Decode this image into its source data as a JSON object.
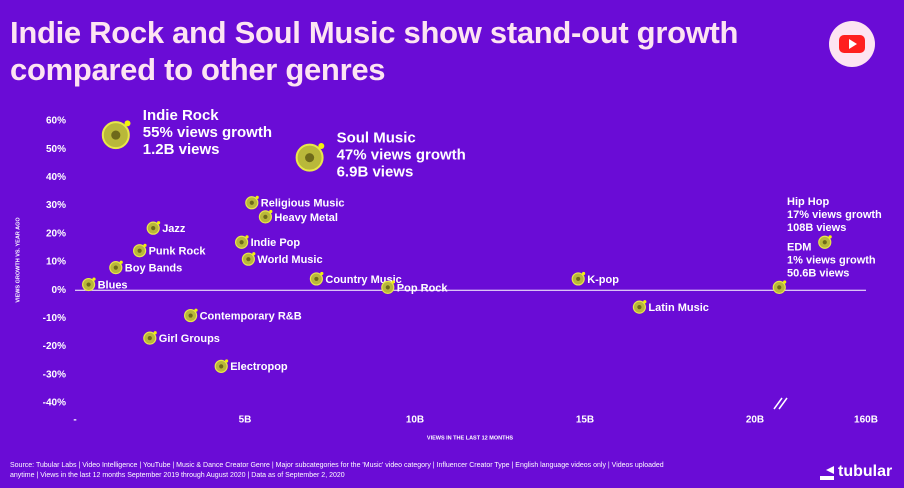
{
  "chart_data": {
    "type": "scatter",
    "title": "Indie Rock and Soul Music show stand-out growth compared to other genres",
    "xlabel": "VIEWS IN THE LAST 12 MONTHS",
    "ylabel": "VIEWS GROWTH VS. YEAR AGO",
    "labels": [
      "Indie Rock",
      "Soul Music",
      "Religious Music",
      "Heavy Metal",
      "Jazz",
      "Indie Pop",
      "Punk Rock",
      "World Music",
      "Boy Bands",
      "Country Music",
      "Blues",
      "Pop Rock",
      "K-pop",
      "Latin Music",
      "Contemporary R&B",
      "Girl Groups",
      "Electropop",
      "Hip Hop",
      "EDM"
    ],
    "x": [
      1.2,
      6.9,
      5.2,
      5.6,
      2.3,
      4.9,
      1.9,
      5.1,
      1.2,
      7.1,
      0.4,
      9.2,
      14.8,
      16.6,
      3.4,
      2.2,
      4.3,
      108,
      50.6
    ],
    "values": [
      55,
      47,
      31,
      26,
      22,
      17,
      14,
      11,
      8,
      4,
      2,
      1,
      4,
      -6,
      -9,
      -17,
      -27,
      17,
      1
    ],
    "value_labels": [
      "55% views growth",
      "47% views growth",
      null,
      null,
      null,
      null,
      null,
      null,
      null,
      null,
      null,
      null,
      null,
      null,
      null,
      null,
      null,
      "17% views growth",
      "1% views growth"
    ],
    "x_value_labels": [
      "1.2B views",
      "6.9B views",
      null,
      null,
      null,
      null,
      null,
      null,
      null,
      null,
      null,
      null,
      null,
      null,
      null,
      null,
      null,
      "108B views",
      "50.6B views"
    ],
    "label_colors": [
      "#f2f20c",
      "#f2f20c",
      "#ffffff",
      "#ffffff",
      "#ffffff",
      "#ffffff",
      "#ffffff",
      "#ffffff",
      "#ffffff",
      "#ffffff",
      "#ffffff",
      "#ffffff",
      "#ffffff",
      "#ffffff",
      "#ffffff",
      "#ffffff",
      "#ffffff",
      "#ffffff",
      "#ffffff"
    ],
    "xlim": [
      0,
      160
    ],
    "xticks": [
      {
        "value": 0,
        "label": "-"
      },
      {
        "value": 5,
        "label": "5B"
      },
      {
        "value": 10,
        "label": "10B"
      },
      {
        "value": 15,
        "label": "15B"
      },
      {
        "value": 20,
        "label": "20B"
      },
      {
        "value": 160,
        "label": "160B"
      }
    ],
    "ylim": [
      -40,
      60
    ],
    "yticks": [
      {
        "value": 60,
        "label": "60%"
      },
      {
        "value": 50,
        "label": "50%"
      },
      {
        "value": 40,
        "label": "40%"
      },
      {
        "value": 30,
        "label": "30%"
      },
      {
        "value": 20,
        "label": "20%"
      },
      {
        "value": 10,
        "label": "10%"
      },
      {
        "value": 0,
        "label": "0%"
      },
      {
        "value": -10,
        "label": "-10%"
      },
      {
        "value": -20,
        "label": "-20%"
      },
      {
        "value": -30,
        "label": "-30%"
      },
      {
        "value": -40,
        "label": "-40%"
      }
    ],
    "source": "Source: Tubular Labs | Video Intelligence | YouTube | Music & Dance Creator Genre | Major subcategories for the 'Music' video category | Influencer Creator Type  | English language videos only  | Videos uploaded anytime | Views in the last 12 months September 2019 through August 2020 | Data as of September 2, 2020",
    "brand": "tubular"
  }
}
